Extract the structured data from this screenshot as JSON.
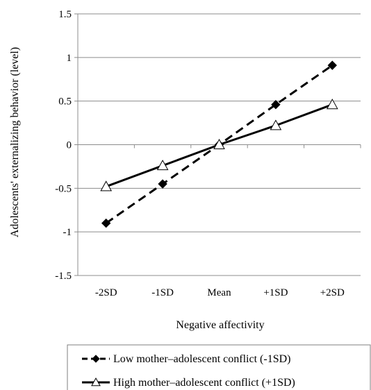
{
  "chart_data": {
    "type": "line",
    "title": "",
    "xlabel": "Negative affectivity",
    "ylabel": "Adolescents' externalizing behavior (level)",
    "categories": [
      "-2SD",
      "-1SD",
      "Mean",
      "+1SD",
      "+2SD"
    ],
    "yticks": [
      "-1.5",
      "-1",
      "-0.5",
      "0",
      "0.5",
      "1",
      "1.5"
    ],
    "ylim": [
      -1.5,
      1.5
    ],
    "grid": "horizontal",
    "legend_position": "bottom",
    "series": [
      {
        "name": "Low mother–adolescent conflict (-1SD)",
        "values": [
          -0.9,
          -0.45,
          0.0,
          0.46,
          0.91
        ],
        "line": "dashed",
        "marker": "filled-diamond",
        "color": "#000000"
      },
      {
        "name": "High mother–adolescent conflict (+1SD)",
        "values": [
          -0.48,
          -0.24,
          0.0,
          0.22,
          0.46
        ],
        "line": "solid",
        "marker": "open-triangle",
        "color": "#000000"
      }
    ]
  }
}
